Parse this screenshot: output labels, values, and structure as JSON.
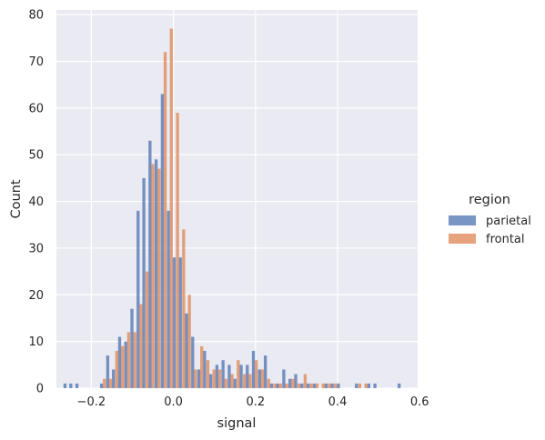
{
  "chart_data": {
    "type": "bar",
    "title": "",
    "xlabel": "signal",
    "ylabel": "Count",
    "xlim": [
      -0.285,
      0.595
    ],
    "ylim": [
      0,
      81
    ],
    "xticks": [
      -0.2,
      0.0,
      0.2,
      0.4,
      0.6
    ],
    "xtick_labels": [
      "−0.2",
      "0.0",
      "0.2",
      "0.4",
      "0.6"
    ],
    "yticks": [
      0,
      10,
      20,
      30,
      40,
      50,
      60,
      70,
      80
    ],
    "ytick_labels": [
      "0",
      "10",
      "20",
      "30",
      "40",
      "50",
      "60",
      "70",
      "80"
    ],
    "grid": true,
    "background": "#eaeaf2",
    "bin_width": 0.0148,
    "legend": {
      "title": "region",
      "position": "right"
    },
    "series": [
      {
        "name": "parietal",
        "color": "#4c72b0",
        "x": [
          -0.264,
          -0.25,
          -0.235,
          -0.175,
          -0.16,
          -0.146,
          -0.131,
          -0.116,
          -0.101,
          -0.086,
          -0.072,
          -0.057,
          -0.042,
          -0.027,
          -0.012,
          0.002,
          0.017,
          0.032,
          0.047,
          0.062,
          0.076,
          0.091,
          0.106,
          0.121,
          0.136,
          0.15,
          0.165,
          0.18,
          0.195,
          0.21,
          0.224,
          0.239,
          0.254,
          0.269,
          0.284,
          0.298,
          0.313,
          0.328,
          0.343,
          0.372,
          0.387,
          0.402,
          0.446,
          0.476,
          0.491,
          0.55
        ],
        "values": [
          1,
          1,
          1,
          1,
          7,
          4,
          11,
          10,
          17,
          38,
          45,
          53,
          49,
          63,
          38,
          28,
          28,
          16,
          11,
          4,
          8,
          3,
          5,
          6,
          5,
          2,
          5,
          5,
          8,
          4,
          7,
          1,
          1,
          4,
          2,
          3,
          1,
          1,
          1,
          1,
          1,
          1,
          1,
          1,
          1,
          1
        ]
      },
      {
        "name": "frontal",
        "color": "#dd8452",
        "x": [
          -0.168,
          -0.153,
          -0.138,
          -0.124,
          -0.109,
          -0.094,
          -0.079,
          -0.064,
          -0.05,
          -0.035,
          -0.02,
          -0.005,
          0.01,
          0.025,
          0.039,
          0.054,
          0.069,
          0.084,
          0.099,
          0.113,
          0.128,
          0.143,
          0.158,
          0.173,
          0.187,
          0.202,
          0.217,
          0.232,
          0.247,
          0.261,
          0.276,
          0.291,
          0.306,
          0.321,
          0.335,
          0.35,
          0.365,
          0.38,
          0.395,
          0.454,
          0.469
        ],
        "values": [
          2,
          2,
          8,
          9,
          12,
          12,
          18,
          25,
          48,
          47,
          72,
          77,
          59,
          34,
          20,
          4,
          9,
          6,
          4,
          4,
          2,
          3,
          6,
          3,
          3,
          6,
          4,
          2,
          1,
          1,
          1,
          2,
          1,
          3,
          1,
          1,
          1,
          1,
          1,
          1,
          1
        ]
      }
    ]
  }
}
